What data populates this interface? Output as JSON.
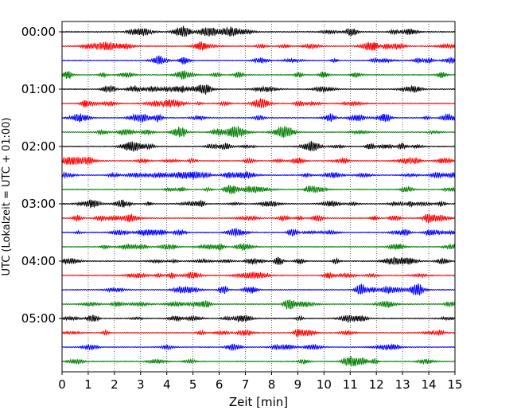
{
  "chart_data": {
    "type": "line",
    "title": "",
    "xlabel": "Zeit  [min]",
    "ylabel": "UTC (Lokalzeit = UTC + 01:00)",
    "xlim": [
      0,
      15
    ],
    "x_ticks": [
      0,
      1,
      2,
      3,
      4,
      5,
      6,
      7,
      8,
      9,
      10,
      11,
      12,
      13,
      14,
      15
    ],
    "y_tick_labels": [
      "00:00",
      "01:00",
      "02:00",
      "03:00",
      "04:00",
      "05:00"
    ],
    "grid": "vertical dotted lines at each minute",
    "trace_interval_minutes": 15,
    "trace_start_times": [
      "00:00",
      "00:15",
      "00:30",
      "00:45",
      "01:00",
      "01:15",
      "01:30",
      "01:45",
      "02:00",
      "02:15",
      "02:30",
      "02:45",
      "03:00",
      "03:15",
      "03:30",
      "03:45",
      "04:00",
      "04:15",
      "04:30",
      "04:45",
      "05:00",
      "05:15",
      "05:30",
      "05:45"
    ],
    "trace_colors": [
      "#000000",
      "#ff0000",
      "#0000ff",
      "#008000"
    ],
    "series_note": "helicorder seismogram: each row is a 15-minute trace of ground motion, colors cycle black/red/blue/green"
  }
}
